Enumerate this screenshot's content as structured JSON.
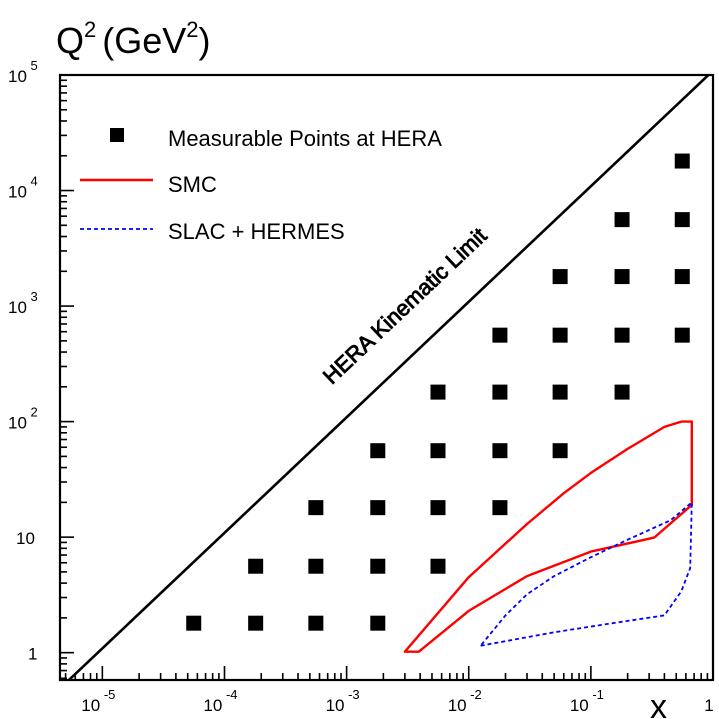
{
  "chart_data": {
    "type": "scatter",
    "title": "",
    "xlabel": "x",
    "ylabel": "Q",
    "ylabel_sup": "2",
    "ylabel_unit": "(GeV",
    "ylabel_unit_sup": "2",
    "ylabel_unit_close": ")",
    "x_scale": "log",
    "y_scale": "log",
    "xlim": [
      4.5e-06,
      1
    ],
    "ylim": [
      0.58,
      100000
    ],
    "grid": false,
    "legend_position": "top-left",
    "x_ticks": [
      {
        "value": 1e-05,
        "base": "10",
        "exp": "-5"
      },
      {
        "value": 0.0001,
        "base": "10",
        "exp": "-4"
      },
      {
        "value": 0.001,
        "base": "10",
        "exp": "-3"
      },
      {
        "value": 0.01,
        "base": "10",
        "exp": "-2"
      },
      {
        "value": 0.1,
        "base": "10",
        "exp": "-1"
      },
      {
        "value": 1,
        "base": "1",
        "exp": ""
      }
    ],
    "y_ticks": [
      {
        "value": 1,
        "base": "1",
        "exp": ""
      },
      {
        "value": 10,
        "base": "10",
        "exp": ""
      },
      {
        "value": 100,
        "base": "10",
        "exp": "2"
      },
      {
        "value": 1000,
        "base": "10",
        "exp": "3"
      },
      {
        "value": 10000,
        "base": "10",
        "exp": "4"
      },
      {
        "value": 100000,
        "base": "10",
        "exp": "5"
      }
    ],
    "annotation": "HERA Kinematic Limit",
    "kinematic_limit": [
      [
        4.5e-06,
        0.49
      ],
      [
        1,
        109000
      ]
    ],
    "legend": [
      {
        "label": "Measurable Points at HERA",
        "marker": "square",
        "color": "#000000"
      },
      {
        "label": "SMC",
        "marker": "solid-line",
        "color": "#ff0000"
      },
      {
        "label": "SLAC + HERMES",
        "marker": "dashed-line",
        "color": "#0000ff"
      }
    ],
    "series": [
      {
        "name": "Measurable Points at HERA",
        "color": "#000000",
        "points": [
          [
            5.6e-05,
            1.8
          ],
          [
            0.00018,
            1.8
          ],
          [
            0.00056,
            1.8
          ],
          [
            0.0018,
            1.8
          ],
          [
            0.00018,
            5.6
          ],
          [
            0.00056,
            5.6
          ],
          [
            0.0018,
            5.6
          ],
          [
            0.0056,
            5.6
          ],
          [
            0.00056,
            18
          ],
          [
            0.0018,
            18
          ],
          [
            0.0056,
            18
          ],
          [
            0.018,
            18
          ],
          [
            0.0018,
            56
          ],
          [
            0.0056,
            56
          ],
          [
            0.018,
            56
          ],
          [
            0.056,
            56
          ],
          [
            0.0056,
            180
          ],
          [
            0.018,
            180
          ],
          [
            0.056,
            180
          ],
          [
            0.18,
            180
          ],
          [
            0.018,
            560
          ],
          [
            0.056,
            560
          ],
          [
            0.18,
            560
          ],
          [
            0.56,
            560
          ],
          [
            0.056,
            1800
          ],
          [
            0.18,
            1800
          ],
          [
            0.56,
            1800
          ],
          [
            0.18,
            5600
          ],
          [
            0.56,
            5600
          ],
          [
            0.56,
            18000
          ]
        ]
      },
      {
        "name": "SMC",
        "color": "#ff0000",
        "style": "solid",
        "polygon": [
          [
            0.003,
            1.02
          ],
          [
            0.0039,
            1.02
          ],
          [
            0.01,
            2.3
          ],
          [
            0.03,
            4.6
          ],
          [
            0.1,
            7.5
          ],
          [
            0.33,
            9.9
          ],
          [
            0.67,
            19
          ],
          [
            0.67,
            100
          ],
          [
            0.55,
            100
          ],
          [
            0.4,
            90
          ],
          [
            0.2,
            58
          ],
          [
            0.1,
            36
          ],
          [
            0.06,
            24
          ],
          [
            0.03,
            13
          ],
          [
            0.01,
            4.5
          ],
          [
            0.003,
            1.02
          ]
        ]
      },
      {
        "name": "SLAC + HERMES",
        "color": "#0000ff",
        "style": "dashed",
        "polygon": [
          [
            0.0125,
            1.15
          ],
          [
            0.05,
            1.5
          ],
          [
            0.15,
            1.8
          ],
          [
            0.4,
            2.1
          ],
          [
            0.55,
            3.4
          ],
          [
            0.65,
            5.4
          ],
          [
            0.67,
            20
          ],
          [
            0.45,
            14
          ],
          [
            0.2,
            9.5
          ],
          [
            0.1,
            6.7
          ],
          [
            0.05,
            4.6
          ],
          [
            0.03,
            3.2
          ],
          [
            0.02,
            2.1
          ],
          [
            0.0125,
            1.15
          ]
        ]
      }
    ]
  }
}
